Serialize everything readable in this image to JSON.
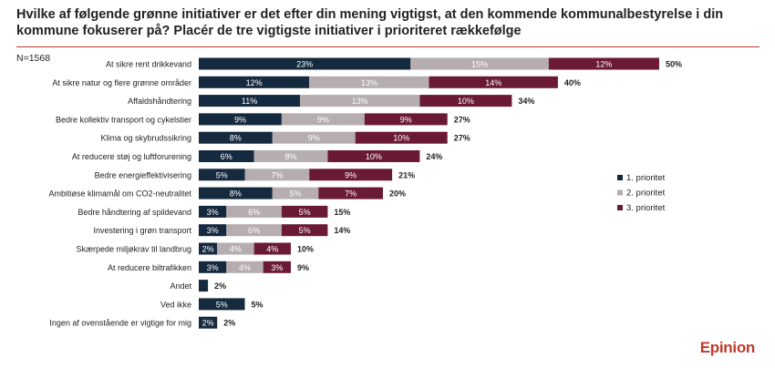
{
  "title": "Hvilke af følgende grønne initiativer er det efter din mening vigtigst, at den kommende kommunalbestyrelse i din kommune fokuserer på?  Placér de tre vigtigste initiativer i prioriteret rækkefølge",
  "n_label": "N=1568",
  "brand": "Epinion",
  "colors": {
    "series1": "#15293f",
    "series2": "#b5adb0",
    "series3": "#6b1a35"
  },
  "chart_data": {
    "type": "bar",
    "orientation": "horizontal",
    "stacked": true,
    "value_suffix": "%",
    "legend_position": "right",
    "categories": [
      "At sikre rent drikkevand",
      "At sikre natur og flere grønne områder",
      "Affaldshåndtering",
      "Bedre kollektiv transport og cykelstier",
      "Klima og skybrudssikring",
      "At reducere støj og luftforurening",
      "Bedre energieffektivisering",
      "Ambitiøse klimamål om CO2-neutralitet",
      "Bedre håndtering af spildevand",
      "Investering i grøn transport",
      "Skærpede miljøkrav til landbrug",
      "At reducere biltrafikken",
      "Andet",
      "Ved ikke",
      "Ingen af ovenstående er vigtige for mig"
    ],
    "series": [
      {
        "name": "1. prioritet",
        "values": [
          23,
          12,
          11,
          9,
          8,
          6,
          5,
          8,
          3,
          3,
          2,
          3,
          1,
          5,
          2
        ]
      },
      {
        "name": "2. prioritet",
        "values": [
          15,
          13,
          13,
          9,
          9,
          8,
          7,
          5,
          6,
          6,
          4,
          4,
          0,
          0,
          0
        ]
      },
      {
        "name": "3. prioritet",
        "values": [
          12,
          14,
          10,
          9,
          10,
          10,
          9,
          7,
          5,
          5,
          4,
          3,
          0,
          0,
          0
        ]
      }
    ],
    "segment_labels": [
      [
        "23%",
        "15%",
        "12%"
      ],
      [
        "12%",
        "13%",
        "14%"
      ],
      [
        "11%",
        "13%",
        "10%"
      ],
      [
        "9%",
        "9%",
        "9%"
      ],
      [
        "8%",
        "9%",
        "10%"
      ],
      [
        "6%",
        "8%",
        "10%"
      ],
      [
        "5%",
        "7%",
        "9%"
      ],
      [
        "8%",
        "5%",
        "7%"
      ],
      [
        "3%",
        "6%",
        "5%"
      ],
      [
        "3%",
        "6%",
        "5%"
      ],
      [
        "2%",
        "4%",
        "4%"
      ],
      [
        "3%",
        "4%",
        "3%"
      ],
      [
        "",
        "",
        ""
      ],
      [
        "5%",
        "",
        ""
      ],
      [
        "2%",
        "",
        ""
      ]
    ],
    "totals": [
      50,
      40,
      34,
      27,
      27,
      24,
      21,
      20,
      15,
      14,
      10,
      9,
      2,
      5,
      2
    ]
  }
}
